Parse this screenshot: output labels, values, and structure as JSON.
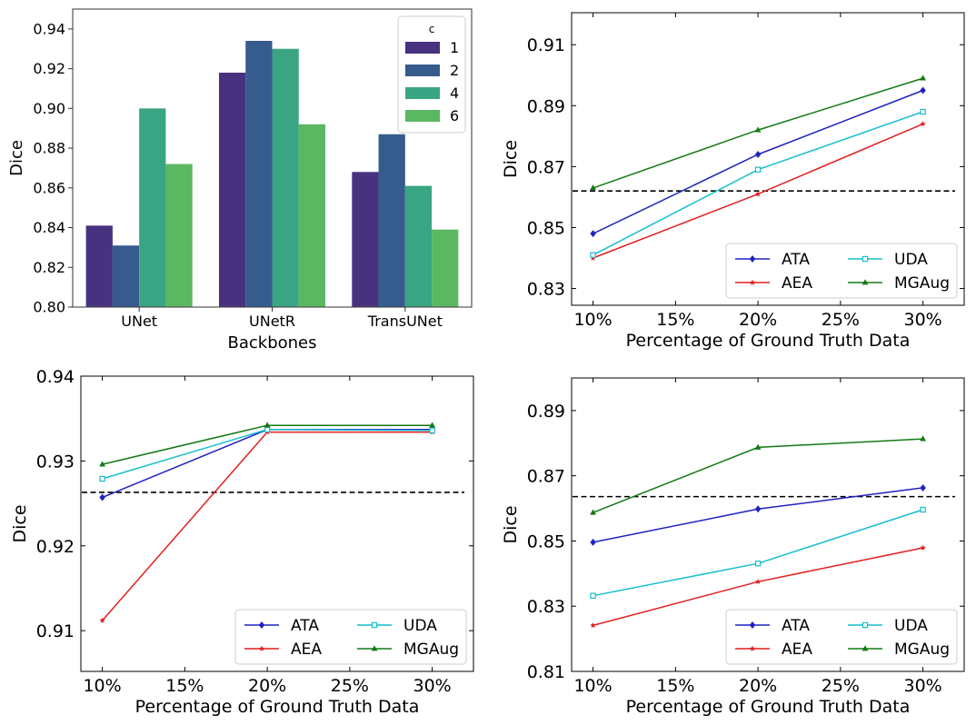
{
  "chart_data": [
    {
      "id": "backbones",
      "type": "bar",
      "title": "",
      "xlabel": "Backbones",
      "ylabel": "Dice",
      "categories": [
        "UNet",
        "UNetR",
        "TransUNet"
      ],
      "ylim": [
        0.8,
        0.95
      ],
      "yticks": [
        0.8,
        0.82,
        0.84,
        0.86,
        0.88,
        0.9,
        0.92,
        0.94
      ],
      "ytick_labels": [
        "0.80",
        "0.82",
        "0.84",
        "0.86",
        "0.88",
        "0.90",
        "0.92",
        "0.94"
      ],
      "legend": {
        "title": "c",
        "position": "top-right"
      },
      "series": [
        {
          "name": "1",
          "color": "#46327e",
          "values": [
            0.841,
            0.918,
            0.868
          ]
        },
        {
          "name": "2",
          "color": "#365c8d",
          "values": [
            0.831,
            0.934,
            0.887
          ]
        },
        {
          "name": "4",
          "color": "#3aa583",
          "values": [
            0.9,
            0.93,
            0.861
          ]
        },
        {
          "name": "6",
          "color": "#5ab862",
          "values": [
            0.872,
            0.892,
            0.839
          ]
        }
      ]
    },
    {
      "id": "top-right",
      "type": "line",
      "xlabel": "Percentage of Ground Truth Data",
      "ylabel": "Dice",
      "x": [
        10,
        20,
        30
      ],
      "xlim": [
        8.7,
        32.5
      ],
      "xticks": [
        10,
        15,
        20,
        25,
        30
      ],
      "xtick_labels": [
        "10%",
        "15%",
        "20%",
        "25%",
        "30%"
      ],
      "ylim": [
        0.8245,
        0.9205
      ],
      "yticks": [
        0.83,
        0.85,
        0.87,
        0.89,
        0.91
      ],
      "ytick_labels": [
        "0.83",
        "0.85",
        "0.87",
        "0.89",
        "0.91"
      ],
      "baseline": 0.862,
      "legend": {
        "position": "bottom-right",
        "columns": 2
      },
      "series": [
        {
          "name": "ATA",
          "color": "#1f22c0",
          "marker": "diamond",
          "values": [
            0.848,
            0.874,
            0.895
          ]
        },
        {
          "name": "AEA",
          "color": "#e11f1f",
          "marker": "star",
          "values": [
            0.84,
            0.861,
            0.884
          ]
        },
        {
          "name": "UDA",
          "color": "#17becf",
          "marker": "square",
          "values": [
            0.841,
            0.869,
            0.888
          ]
        },
        {
          "name": "MGAug",
          "color": "#137a13",
          "marker": "triangle",
          "values": [
            0.863,
            0.882,
            0.899
          ]
        }
      ]
    },
    {
      "id": "bottom-left",
      "type": "line",
      "xlabel": "Percentage of Ground Truth Data",
      "ylabel": "Dice",
      "x": [
        10,
        20,
        30
      ],
      "xlim": [
        8.7,
        32.5
      ],
      "xticks": [
        10,
        15,
        20,
        25,
        30
      ],
      "xtick_labels": [
        "10%",
        "15%",
        "20%",
        "25%",
        "30%"
      ],
      "ylim": [
        0.9052,
        0.94
      ],
      "yticks": [
        0.91,
        0.92,
        0.93,
        0.94
      ],
      "ytick_labels": [
        "0.91",
        "0.92",
        "0.93",
        "0.94"
      ],
      "baseline": 0.9263,
      "legend": {
        "position": "bottom-right",
        "columns": 2
      },
      "series": [
        {
          "name": "ATA",
          "color": "#1f22c0",
          "marker": "diamond",
          "values": [
            0.9257,
            0.9337,
            0.9337
          ]
        },
        {
          "name": "AEA",
          "color": "#e11f1f",
          "marker": "star",
          "values": [
            0.9112,
            0.9334,
            0.9334
          ]
        },
        {
          "name": "UDA",
          "color": "#17becf",
          "marker": "square",
          "values": [
            0.9279,
            0.9337,
            0.9336
          ]
        },
        {
          "name": "MGAug",
          "color": "#137a13",
          "marker": "triangle",
          "values": [
            0.9296,
            0.9342,
            0.9342
          ]
        }
      ]
    },
    {
      "id": "bottom-right",
      "type": "line",
      "xlabel": "Percentage of Ground Truth Data",
      "ylabel": "Dice",
      "x": [
        10,
        20,
        30
      ],
      "xlim": [
        8.7,
        32.5
      ],
      "xticks": [
        10,
        15,
        20,
        25,
        30
      ],
      "xtick_labels": [
        "10%",
        "15%",
        "20%",
        "25%",
        "30%"
      ],
      "ylim": [
        0.81,
        0.9
      ],
      "yticks": [
        0.81,
        0.83,
        0.85,
        0.87,
        0.89
      ],
      "ytick_labels": [
        "0.81",
        "0.83",
        "0.85",
        "0.87",
        "0.89"
      ],
      "baseline": 0.8636,
      "legend": {
        "position": "bottom-right",
        "columns": 2
      },
      "series": [
        {
          "name": "ATA",
          "color": "#1f22c0",
          "marker": "diamond",
          "values": [
            0.8496,
            0.8598,
            0.8663
          ]
        },
        {
          "name": "AEA",
          "color": "#e11f1f",
          "marker": "star",
          "values": [
            0.8241,
            0.8375,
            0.8479
          ]
        },
        {
          "name": "UDA",
          "color": "#17becf",
          "marker": "square",
          "values": [
            0.8332,
            0.8431,
            0.8596
          ]
        },
        {
          "name": "MGAug",
          "color": "#137a13",
          "marker": "triangle",
          "values": [
            0.8587,
            0.8787,
            0.8813
          ]
        }
      ]
    }
  ]
}
